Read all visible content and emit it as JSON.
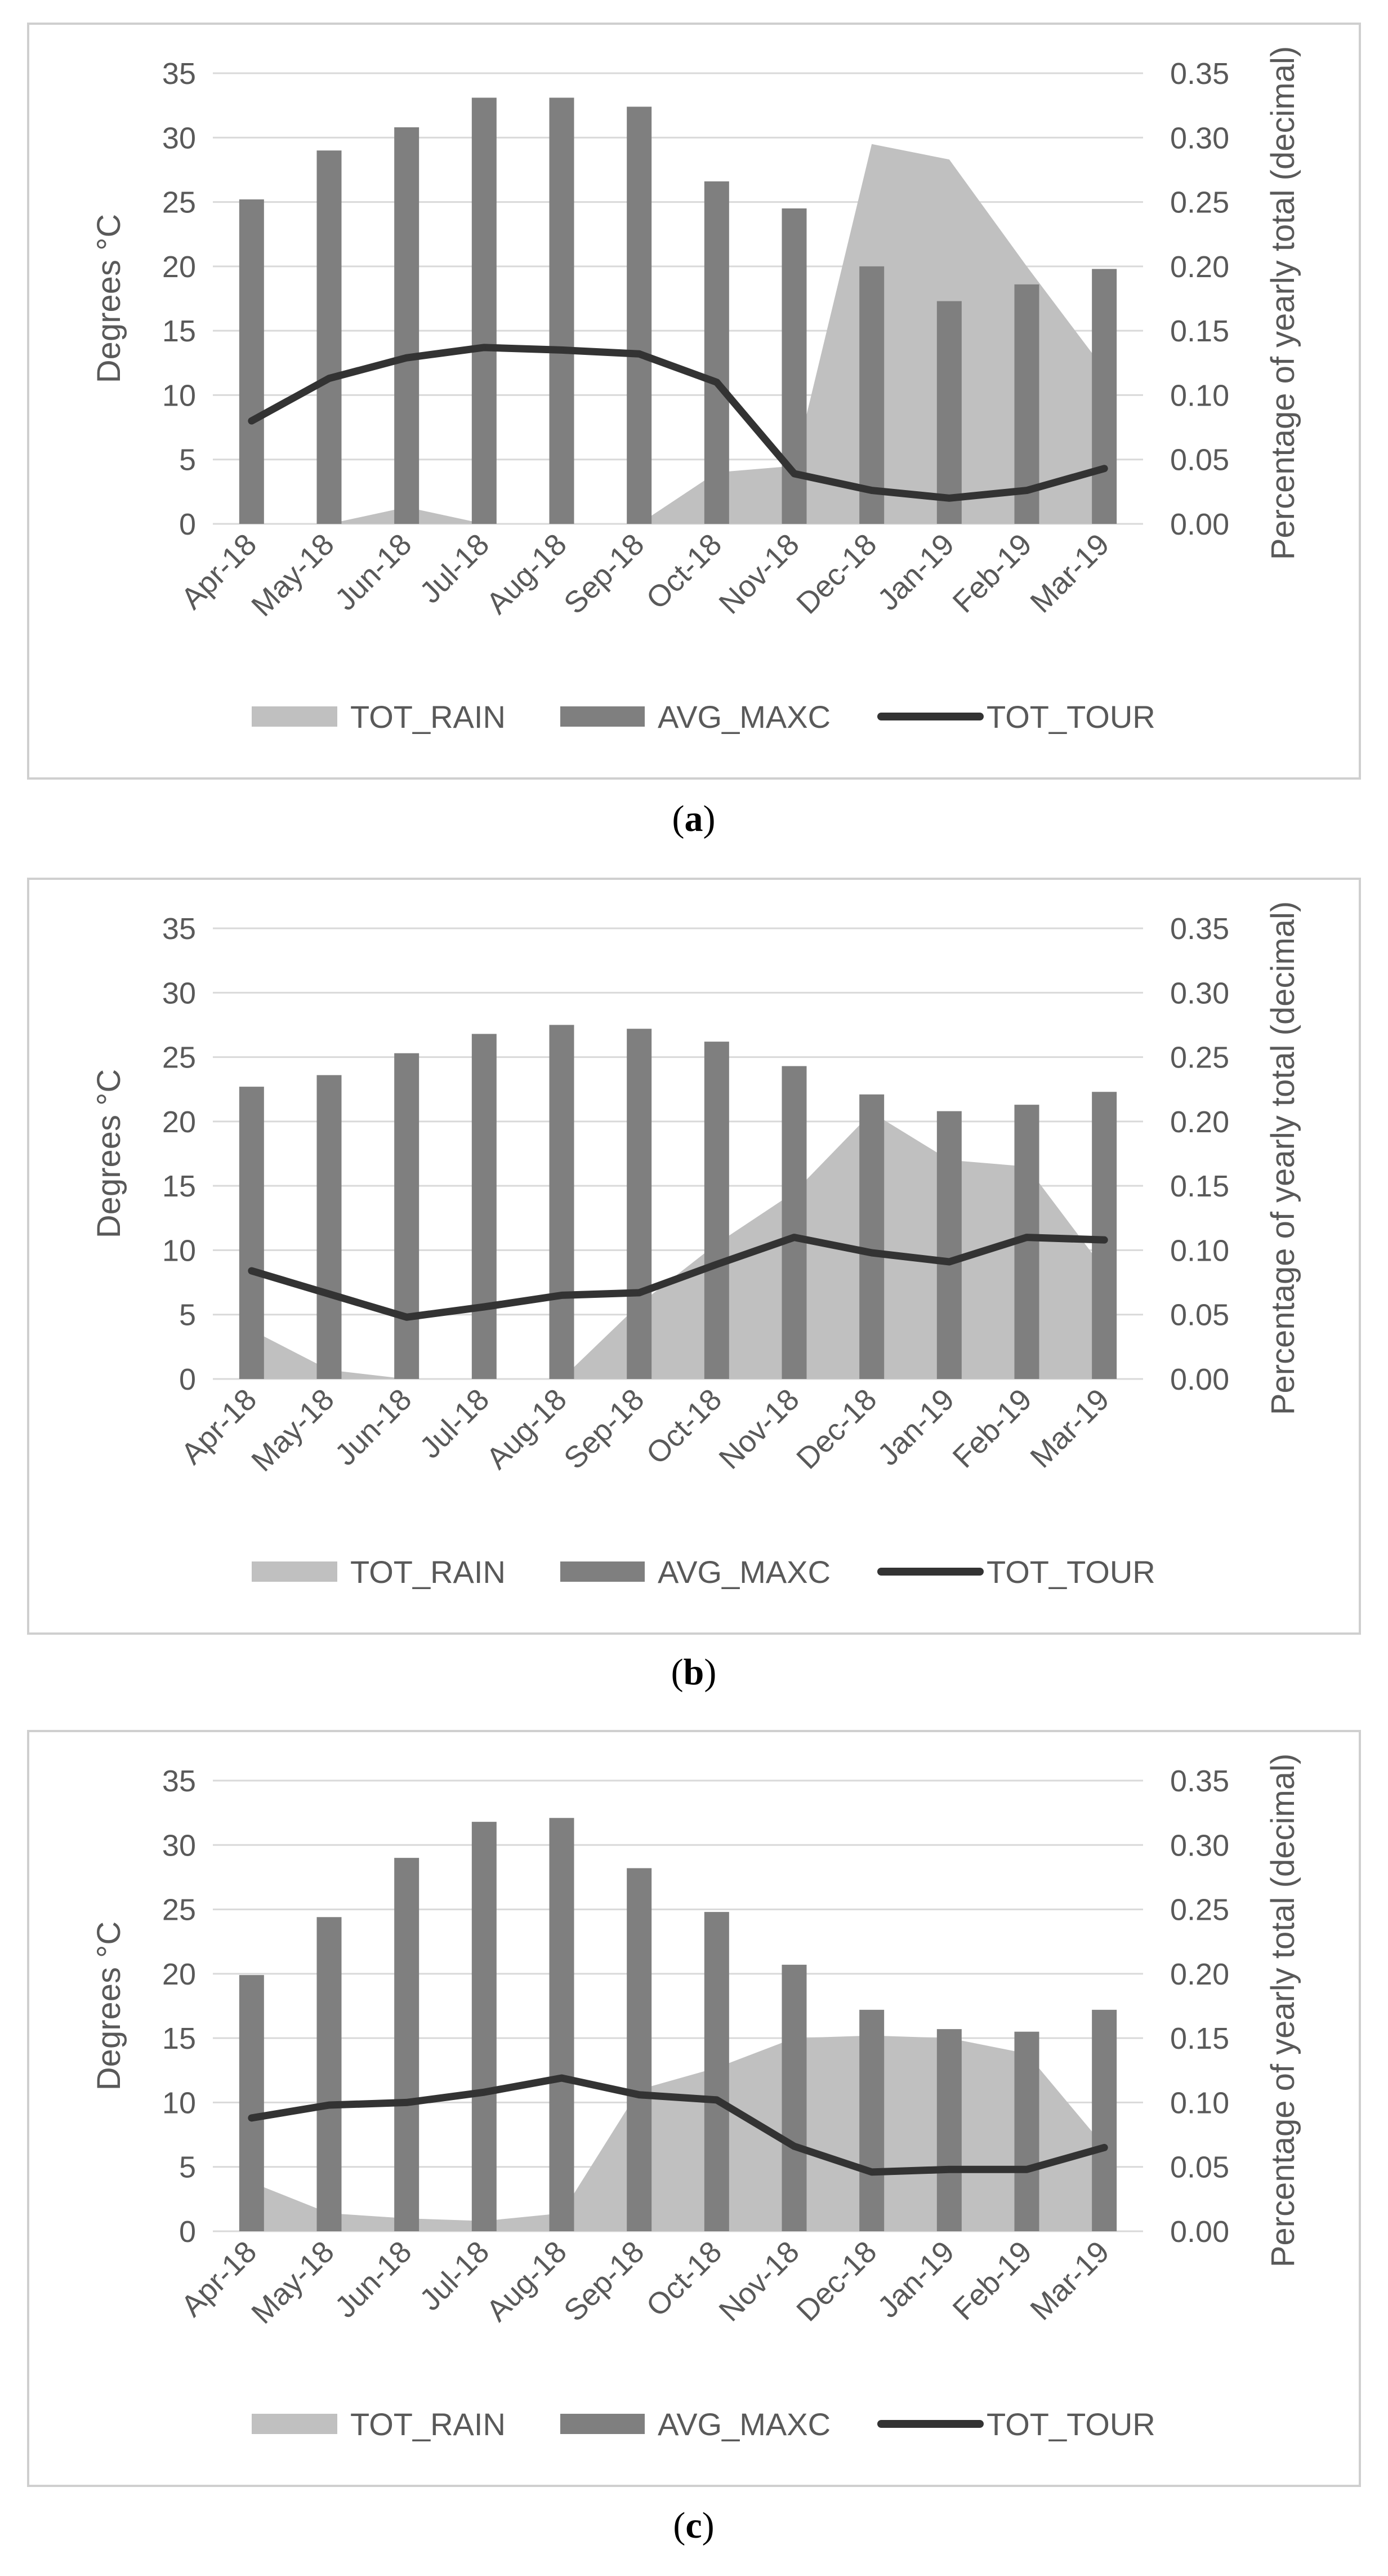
{
  "colors": {
    "rain": "#c0c0c0",
    "temp": "#7f7f7f",
    "tour": "#333333",
    "grid": "#d9d9d9",
    "text": "#595959",
    "frame": "#cfcfcf"
  },
  "chart_data": [
    {
      "type": "bar",
      "caption": {
        "open": "(",
        "letter": "a",
        "close": ")"
      },
      "categories": [
        "Apr-18",
        "May-18",
        "Jun-18",
        "Jul-18",
        "Aug-18",
        "Sep-18",
        "Oct-18",
        "Nov-18",
        "Dec-18",
        "Jan-19",
        "Feb-19",
        "Mar-19"
      ],
      "ylabel": "Degrees °C",
      "y2label": "Percentage of yearly total (decimal)",
      "ylim": [
        0,
        35
      ],
      "y2lim": [
        0,
        0.35
      ],
      "yticks": [
        "0",
        "5",
        "10",
        "15",
        "20",
        "25",
        "30",
        "35"
      ],
      "y2ticks": [
        "0.00",
        "0.05",
        "0.10",
        "0.15",
        "0.20",
        "0.25",
        "0.30",
        "0.35"
      ],
      "grid": true,
      "legend_position": "bottom",
      "series": [
        {
          "name": "TOT_RAIN",
          "kind": "area",
          "axis": "secondary",
          "values": [
            0.0,
            0.0,
            0.013,
            0.0,
            0.0,
            0.0,
            0.04,
            0.045,
            0.295,
            0.283,
            0.2,
            0.12
          ]
        },
        {
          "name": "AVG_MAXC",
          "kind": "bar",
          "axis": "primary",
          "values": [
            25.2,
            29.0,
            30.8,
            33.1,
            33.1,
            32.4,
            26.6,
            24.5,
            20.0,
            17.3,
            18.6,
            19.8
          ]
        },
        {
          "name": "TOT_TOUR",
          "kind": "line",
          "axis": "secondary",
          "values": [
            0.08,
            0.113,
            0.129,
            0.137,
            0.135,
            0.132,
            0.11,
            0.039,
            0.026,
            0.02,
            0.026,
            0.043
          ]
        }
      ]
    },
    {
      "type": "bar",
      "caption": {
        "open": "(",
        "letter": "b",
        "close": ")"
      },
      "categories": [
        "Apr-18",
        "May-18",
        "Jun-18",
        "Jul-18",
        "Aug-18",
        "Sep-18",
        "Oct-18",
        "Nov-18",
        "Dec-18",
        "Jan-19",
        "Feb-19",
        "Mar-19"
      ],
      "ylabel": "Degrees °C",
      "y2label": "Percentage of yearly total (decimal)",
      "ylim": [
        0,
        35
      ],
      "y2lim": [
        0,
        0.35
      ],
      "yticks": [
        "0",
        "5",
        "10",
        "15",
        "20",
        "25",
        "30",
        "35"
      ],
      "y2ticks": [
        "0.00",
        "0.05",
        "0.10",
        "0.15",
        "0.20",
        "0.25",
        "0.30",
        "0.35"
      ],
      "grid": true,
      "legend_position": "bottom",
      "series": [
        {
          "name": "TOT_RAIN",
          "kind": "area",
          "axis": "secondary",
          "values": [
            0.038,
            0.007,
            0.0,
            0.0,
            0.0,
            0.058,
            0.105,
            0.145,
            0.207,
            0.17,
            0.165,
            0.085
          ]
        },
        {
          "name": "AVG_MAXC",
          "kind": "bar",
          "axis": "primary",
          "values": [
            22.7,
            23.6,
            25.3,
            26.8,
            27.5,
            27.2,
            26.2,
            24.3,
            22.1,
            20.8,
            21.3,
            22.3
          ]
        },
        {
          "name": "TOT_TOUR",
          "kind": "line",
          "axis": "secondary",
          "values": [
            0.084,
            0.066,
            0.048,
            0.056,
            0.065,
            0.067,
            0.089,
            0.11,
            0.098,
            0.091,
            0.11,
            0.108
          ]
        }
      ]
    },
    {
      "type": "bar",
      "caption": {
        "open": "(",
        "letter": "c",
        "close": ")"
      },
      "categories": [
        "Apr-18",
        "May-18",
        "Jun-18",
        "Jul-18",
        "Aug-18",
        "Sep-18",
        "Oct-18",
        "Nov-18",
        "Dec-18",
        "Jan-19",
        "Feb-19",
        "Mar-19"
      ],
      "ylabel": "Degrees °C",
      "y2label": "Percentage of yearly total (decimal)",
      "ylim": [
        0,
        35
      ],
      "y2lim": [
        0,
        0.35
      ],
      "yticks": [
        "0",
        "5",
        "10",
        "15",
        "20",
        "25",
        "30",
        "35"
      ],
      "y2ticks": [
        "0.00",
        "0.05",
        "0.10",
        "0.15",
        "0.20",
        "0.25",
        "0.30",
        "0.35"
      ],
      "grid": true,
      "legend_position": "bottom",
      "series": [
        {
          "name": "TOT_RAIN",
          "kind": "area",
          "axis": "secondary",
          "values": [
            0.038,
            0.014,
            0.01,
            0.008,
            0.014,
            0.11,
            0.127,
            0.15,
            0.152,
            0.15,
            0.138,
            0.066
          ]
        },
        {
          "name": "AVG_MAXC",
          "kind": "bar",
          "axis": "primary",
          "values": [
            19.9,
            24.4,
            29.0,
            31.8,
            32.1,
            28.2,
            24.8,
            20.7,
            17.2,
            15.7,
            15.5,
            17.2
          ]
        },
        {
          "name": "TOT_TOUR",
          "kind": "line",
          "axis": "secondary",
          "values": [
            0.088,
            0.098,
            0.1,
            0.108,
            0.119,
            0.106,
            0.102,
            0.066,
            0.046,
            0.048,
            0.048,
            0.065
          ]
        }
      ]
    }
  ]
}
